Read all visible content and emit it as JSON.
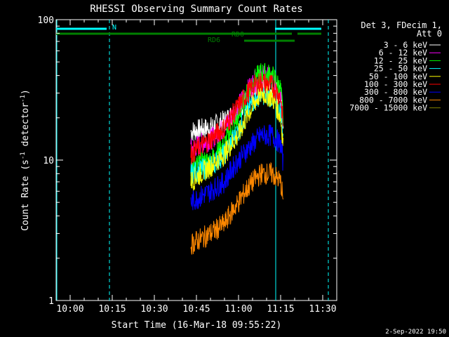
{
  "chart_data": {
    "type": "line",
    "title": "RHESSI Observing Summary Count Rates",
    "xlabel": "Start Time (16-Mar-18 09:55:22)",
    "ylabel_main": "Count Rate (s",
    "ylabel_sup1": "-1",
    "ylabel_mid": " detector",
    "ylabel_sup2": "-1",
    "ylabel_end": ")",
    "y_scale": "log",
    "ylim": [
      1,
      100
    ],
    "xlim": [
      "09:55",
      "11:35"
    ],
    "x_ticks": [
      "10:00",
      "10:15",
      "10:30",
      "10:45",
      "11:00",
      "11:15",
      "11:30"
    ],
    "y_ticks": [
      "1",
      "10",
      "100"
    ],
    "date_stamp": "2-Sep-2022 19:50",
    "legend_header": [
      "Det 3, FDecim 1,",
      "Att 0"
    ],
    "series": [
      {
        "name": "3 - 6 keV",
        "color": "#ffffff",
        "x": [
          "10:43",
          "10:50",
          "10:55",
          "11:00",
          "11:05",
          "11:08",
          "11:12",
          "11:15",
          "11:16"
        ],
        "values": [
          16,
          17,
          19,
          23,
          29,
          33,
          33,
          28,
          18
        ]
      },
      {
        "name": "6 - 12 keV",
        "color": "#ff00ff",
        "x": [
          "10:43",
          "10:50",
          "10:55",
          "11:00",
          "11:05",
          "11:08",
          "11:12",
          "11:15",
          "11:16"
        ],
        "values": [
          12,
          14,
          17,
          24,
          35,
          40,
          38,
          30,
          16
        ]
      },
      {
        "name": "12 - 25 keV",
        "color": "#00ff00",
        "x": [
          "10:43",
          "10:50",
          "10:55",
          "11:00",
          "11:05",
          "11:08",
          "11:12",
          "11:15",
          "11:16"
        ],
        "values": [
          9,
          10,
          13,
          20,
          36,
          42,
          40,
          32,
          18
        ]
      },
      {
        "name": "25 - 50 keV",
        "color": "#00ffff",
        "x": [
          "10:43",
          "10:50",
          "10:55",
          "11:00",
          "11:05",
          "11:08",
          "11:12",
          "11:15",
          "11:16"
        ],
        "values": [
          8,
          9,
          11,
          16,
          26,
          30,
          28,
          22,
          14
        ]
      },
      {
        "name": "50 - 100 keV",
        "color": "#ffff00",
        "x": [
          "10:43",
          "10:50",
          "10:55",
          "11:00",
          "11:05",
          "11:08",
          "11:12",
          "11:15",
          "11:16"
        ],
        "values": [
          7,
          9,
          11,
          15,
          24,
          30,
          28,
          20,
          12
        ]
      },
      {
        "name": "100 - 300 keV",
        "color": "#ff0000",
        "x": [
          "10:43",
          "10:50",
          "10:55",
          "11:00",
          "11:05",
          "11:08",
          "11:12",
          "11:15",
          "11:16"
        ],
        "values": [
          11,
          14,
          17,
          24,
          33,
          36,
          34,
          28,
          16
        ]
      },
      {
        "name": "300 - 800 keV",
        "color": "#0000ff",
        "x": [
          "10:43",
          "10:50",
          "10:55",
          "11:00",
          "11:05",
          "11:08",
          "11:12",
          "11:15",
          "11:16"
        ],
        "values": [
          5,
          6,
          7,
          10,
          13,
          15,
          15,
          13,
          9
        ]
      },
      {
        "name": "800 - 7000 keV",
        "color": "#ff8800",
        "x": [
          "10:43",
          "10:50",
          "10:55",
          "11:00",
          "11:05",
          "11:08",
          "11:12",
          "11:15",
          "11:16"
        ],
        "values": [
          2.5,
          3,
          3.5,
          5,
          7,
          8,
          8,
          7,
          5
        ]
      },
      {
        "name": "7000 - 15000 keV",
        "color": "#808000",
        "x": [],
        "values": []
      }
    ],
    "state_bars": [
      {
        "label": "N",
        "color": "#00ffff",
        "segments": [
          [
            "09:55",
            "10:13"
          ],
          [
            "11:13",
            "11:35"
          ]
        ]
      },
      {
        "label": "RD0",
        "color": "#008000",
        "segments": [
          [
            "09:55",
            "11:19"
          ],
          [
            "11:21",
            "11:35"
          ]
        ]
      },
      {
        "label": "RD6",
        "color": "#008000",
        "segments": [
          [
            "11:02",
            "11:20"
          ]
        ]
      }
    ],
    "vlines_solid": [
      "09:55",
      "11:13"
    ],
    "vlines_dashed": [
      "10:14",
      "11:32"
    ]
  }
}
